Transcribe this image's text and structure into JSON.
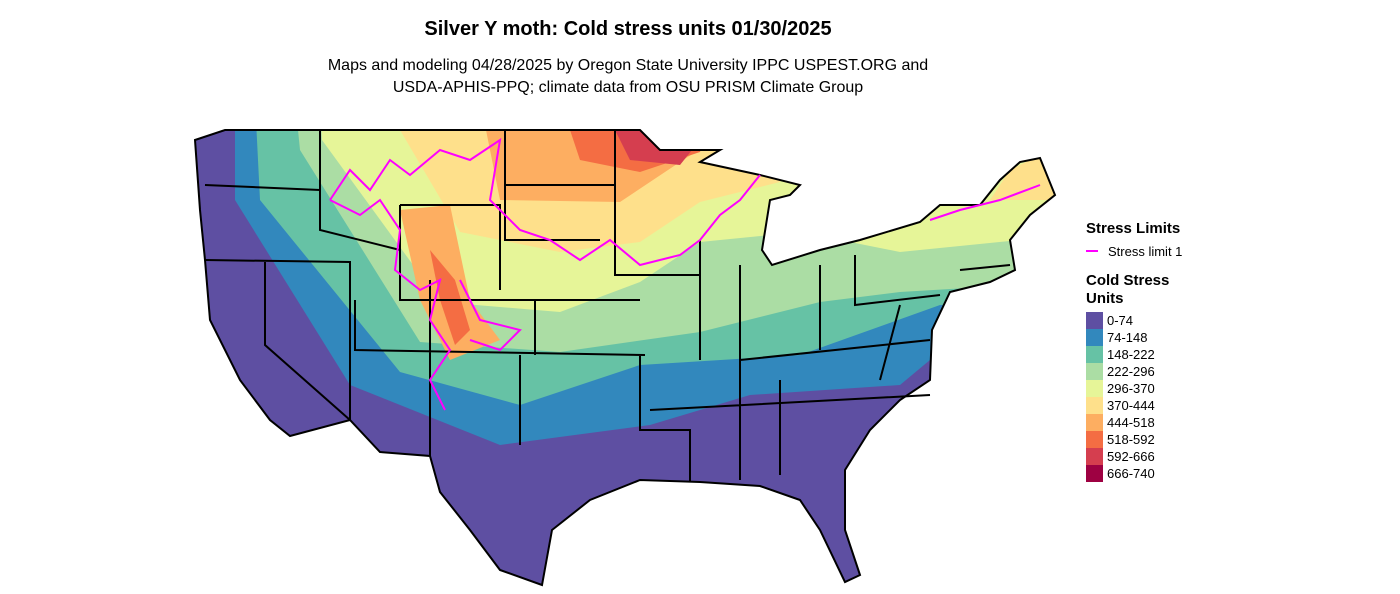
{
  "header": {
    "title": "Silver Y moth: Cold stress units 01/30/2025",
    "subtitle_lines": [
      "Maps and modeling 04/28/2025 by Oregon State University IPPC USPEST.ORG and",
      "USDA-APHIS-PPQ; climate data from OSU PRISM Climate Group"
    ]
  },
  "legend": {
    "limits_title": "Stress Limits",
    "limits": [
      {
        "label": "Stress limit 1",
        "color": "#ff00ff"
      }
    ],
    "units_title": "Cold Stress Units",
    "classes": [
      {
        "label": "0-74",
        "color": "#5e4fa2"
      },
      {
        "label": "74-148",
        "color": "#3288bd"
      },
      {
        "label": "148-222",
        "color": "#66c2a5"
      },
      {
        "label": "222-296",
        "color": "#abdda4"
      },
      {
        "label": "296-370",
        "color": "#e6f598"
      },
      {
        "label": "370-444",
        "color": "#fee08b"
      },
      {
        "label": "444-518",
        "color": "#fdae61"
      },
      {
        "label": "518-592",
        "color": "#f46d43"
      },
      {
        "label": "592-666",
        "color": "#d53e4f"
      },
      {
        "label": "666-740",
        "color": "#9e0142"
      }
    ]
  }
}
